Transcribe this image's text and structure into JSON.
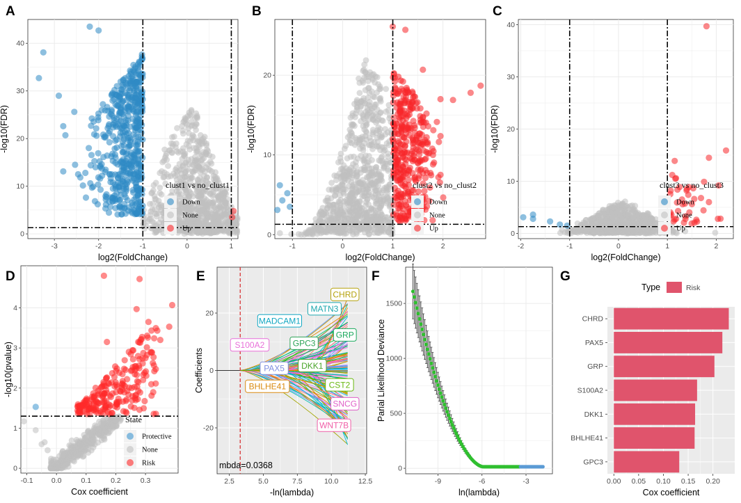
{
  "figure": {
    "panel_letters": [
      "A",
      "B",
      "C",
      "D",
      "E",
      "F",
      "G"
    ]
  },
  "colors": {
    "down": "#2f8ac4",
    "none": "#bfbfbf",
    "up": "#f8262a",
    "protective": "#3d96d0",
    "risk": "#ff2a2a",
    "bar": "#e0546c",
    "green": "#2fbf2f",
    "blue_pts": "#5b9bd5",
    "panel_bg_gray": "#ebebeb"
  },
  "chart_data": [
    {
      "id": "A",
      "type": "scatter",
      "subtype": "volcano",
      "xlabel": "log2(FoldChange)",
      "ylabel": "-log10(FDR)",
      "xlim": [
        -3.6,
        1.15
      ],
      "ylim": [
        -1,
        45
      ],
      "xticks": [
        -3,
        -2,
        -1,
        0,
        1
      ],
      "yticks": [
        0,
        10,
        20,
        30,
        40
      ],
      "vlines": [
        -1,
        1
      ],
      "hline": 1.3,
      "legend": {
        "title": "clust1 vs no_clust1",
        "entries": [
          "Down",
          "None",
          "Up"
        ]
      },
      "highlight_points": {
        "down": [
          [
            -3.25,
            38.1
          ],
          [
            -3.35,
            32.7
          ],
          [
            -2.9,
            29
          ],
          [
            -2.8,
            22.6
          ],
          [
            -2.75,
            20.7
          ],
          [
            -2.8,
            13.1
          ],
          [
            -2.55,
            25.6
          ],
          [
            -2.2,
            43.5
          ],
          [
            -2.0,
            42.7
          ],
          [
            -1.85,
            13
          ],
          [
            -2.3,
            12.8
          ],
          [
            -2.1,
            20.9
          ],
          [
            -1.5,
            10.6
          ],
          [
            -1.2,
            5
          ],
          [
            -1.1,
            9.1
          ]
        ],
        "up": [
          [
            1.05,
            4.8
          ],
          [
            1.02,
            3.5
          ]
        ]
      }
    },
    {
      "id": "B",
      "type": "scatter",
      "subtype": "volcano",
      "xlabel": "log2(FoldChange)",
      "ylabel": "-log10(FDR)",
      "xlim": [
        -1.35,
        2.85
      ],
      "ylim": [
        -0.5,
        27
      ],
      "xticks": [
        -1,
        0,
        1,
        2
      ],
      "yticks": [
        0,
        10,
        20
      ],
      "vlines": [
        -1,
        1
      ],
      "hline": 1.3,
      "legend": {
        "title": "clust2 vs no_clust2",
        "entries": [
          "Down",
          "None",
          "Up"
        ]
      },
      "highlight_points": {
        "down": [
          [
            -1.25,
            6.2
          ],
          [
            -1.1,
            5.2
          ],
          [
            -1.3,
            3.1
          ],
          [
            -1.05,
            3.5
          ],
          [
            -1.2,
            4.3
          ]
        ],
        "up": [
          [
            1.0,
            26.1
          ],
          [
            1.6,
            20.7
          ],
          [
            1.95,
            17
          ],
          [
            2.2,
            16.9
          ],
          [
            2.55,
            17.8
          ],
          [
            2.75,
            18.7
          ],
          [
            1.8,
            10
          ],
          [
            1.25,
            25.7
          ]
        ]
      }
    },
    {
      "id": "C",
      "type": "scatter",
      "subtype": "volcano",
      "xlabel": "log2(FoldChange)",
      "ylabel": "-log10(FDR)",
      "xlim": [
        -2.05,
        2.35
      ],
      "ylim": [
        -1,
        41
      ],
      "xticks": [
        -2,
        -1,
        0,
        1,
        2
      ],
      "yticks": [
        0,
        10,
        20,
        30,
        40
      ],
      "vlines": [
        -1,
        1
      ],
      "hline": 1.3,
      "legend": {
        "title": "clust3 vs no_clust3",
        "entries": [
          "Down",
          "None",
          "Up"
        ]
      },
      "highlight_points": {
        "down": [
          [
            -1.95,
            3.1
          ],
          [
            -1.75,
            3.6
          ],
          [
            -1.75,
            2.8
          ],
          [
            -1.4,
            2.3
          ],
          [
            -1.05,
            1.5
          ],
          [
            -1.2,
            1.7
          ]
        ],
        "up": [
          [
            1.8,
            39.7
          ],
          [
            2.2,
            15.9
          ],
          [
            1.85,
            14.5
          ],
          [
            1.15,
            13.9
          ],
          [
            1.75,
            9.9
          ],
          [
            2.05,
            9.2
          ],
          [
            1.55,
            6.6
          ],
          [
            1.85,
            6.0
          ],
          [
            1.1,
            11.2
          ],
          [
            1.25,
            8.9
          ]
        ]
      }
    },
    {
      "id": "D",
      "type": "scatter",
      "xlabel": "Cox coefficient",
      "ylabel": "-log10(pvalue)",
      "xlim": [
        -0.12,
        0.41
      ],
      "ylim": [
        -0.12,
        5.05
      ],
      "xticks": [
        -0.1,
        0.0,
        0.1,
        0.2,
        0.3
      ],
      "xticklabels": [
        "-0.1",
        "0.0",
        "0.1",
        "0.2",
        "0.3"
      ],
      "yticks": [
        0,
        1,
        2,
        3,
        4
      ],
      "hline": 1.3,
      "legend": {
        "title": "State",
        "entries": [
          "Protective",
          "None",
          "Risk"
        ]
      },
      "highlight_points": {
        "protective": [
          [
            -0.07,
            1.53
          ]
        ],
        "risk": [
          [
            0.16,
            4.8
          ],
          [
            0.28,
            4.72
          ],
          [
            0.39,
            4.07
          ],
          [
            0.27,
            3.97
          ],
          [
            0.31,
            3.65
          ],
          [
            0.38,
            3.53
          ],
          [
            0.35,
            3.2
          ],
          [
            0.17,
            3.15
          ],
          [
            0.3,
            2.75
          ]
        ]
      }
    },
    {
      "id": "E",
      "type": "line",
      "subtype": "lasso-coefficient-path",
      "xlabel": "-ln(lambda)",
      "ylabel": "Coefficients",
      "xlim": [
        1.6,
        12.6
      ],
      "ylim": [
        -36,
        36
      ],
      "xticks": [
        2.5,
        5.0,
        7.5,
        10.0,
        12.5
      ],
      "xticklabels": [
        "2.5",
        "5.0",
        "7.5",
        "10.0",
        "12.5"
      ],
      "yticks": [
        -20,
        0,
        20
      ],
      "vline": 3.3,
      "annotation": "mbda=0.0368",
      "gene_labels": [
        {
          "name": "CHRD",
          "color": "#b5a20c",
          "x": 11.0,
          "y": 26.5
        },
        {
          "name": "MATN3",
          "color": "#1ea7ae",
          "x": 9.5,
          "y": 21.5
        },
        {
          "name": "MADCAM1",
          "color": "#12a7c2",
          "x": 6.2,
          "y": 17.3
        },
        {
          "name": "GRP",
          "color": "#19a85c",
          "x": 11.0,
          "y": 12.4
        },
        {
          "name": "GPC3",
          "color": "#2ca356",
          "x": 8.0,
          "y": 9.5
        },
        {
          "name": "S100A2",
          "color": "#e86fd9",
          "x": 4.0,
          "y": 8.9
        },
        {
          "name": "PAX5",
          "color": "#7f8fe0",
          "x": 5.8,
          "y": 0.8
        },
        {
          "name": "DKK1",
          "color": "#4aa52a",
          "x": 8.6,
          "y": 1.7
        },
        {
          "name": "BHLHE41",
          "color": "#d98a0f",
          "x": 5.3,
          "y": -5.5
        },
        {
          "name": "CST2",
          "color": "#68b80f",
          "x": 10.6,
          "y": -5.0
        },
        {
          "name": "SNCG",
          "color": "#e05fc8",
          "x": 11.0,
          "y": -11.6
        },
        {
          "name": "WNT7B",
          "color": "#f060a8",
          "x": 10.2,
          "y": -19.1
        }
      ]
    },
    {
      "id": "F",
      "type": "line",
      "subtype": "partial-likelihood-deviance",
      "xlabel": "ln(lambda)",
      "ylabel": "Parial Likelihood Deviance",
      "xlim": [
        -11.2,
        -1.2
      ],
      "ylim": [
        -50,
        1830
      ],
      "xticks": [
        -9,
        -6,
        -3
      ],
      "yticks": [
        0,
        500,
        1000,
        1500
      ],
      "curve": {
        "x_start": -10.7,
        "x_end": -1.85,
        "y_start": 1610,
        "floor": 14,
        "x_floor": -5.9,
        "blue_from": -3.4
      },
      "error_bar_half_width_at_start": 250
    },
    {
      "id": "G",
      "type": "bar",
      "orientation": "horizontal",
      "xlabel": "Cox coefficient",
      "categories": [
        "CHRD",
        "PAX5",
        "GRP",
        "S100A2",
        "DKK1",
        "BHLHE41",
        "GPC3"
      ],
      "values": [
        0.232,
        0.219,
        0.203,
        0.168,
        0.164,
        0.163,
        0.132
      ],
      "xlim": [
        -0.013,
        0.244
      ],
      "xticks": [
        0.0,
        0.05,
        0.1,
        0.15,
        0.2
      ],
      "xticklabels": [
        "0.00",
        "0.05",
        "0.10",
        "0.15",
        "0.20"
      ],
      "legend": {
        "title": "Type",
        "entries": [
          "Risk"
        ]
      }
    }
  ]
}
